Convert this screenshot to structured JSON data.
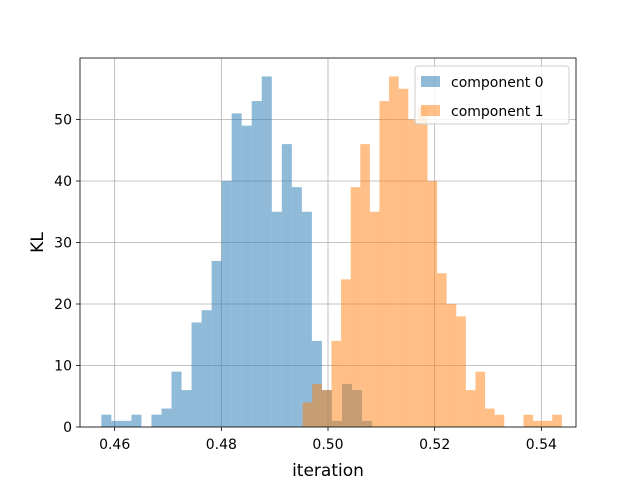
{
  "chart_data": {
    "type": "bar",
    "subtype": "overlapping-histogram",
    "xlabel": "iteration",
    "ylabel": "KL",
    "xlim": [
      0.4535,
      0.5465
    ],
    "ylim": [
      0,
      60
    ],
    "xticks": [
      0.46,
      0.48,
      0.5,
      0.52,
      0.54
    ],
    "xtick_labels": [
      "0.46",
      "0.48",
      "0.50",
      "0.52",
      "0.54"
    ],
    "yticks": [
      0,
      10,
      20,
      30,
      40,
      50
    ],
    "ytick_labels": [
      "0",
      "10",
      "20",
      "30",
      "40",
      "50"
    ],
    "grid": true,
    "legend_position": "top-right",
    "series": [
      {
        "name": "component 0",
        "color": "#1f77b4",
        "alpha": 0.5,
        "bin_start": 0.4575,
        "bin_width": 0.00188,
        "counts": [
          2,
          1,
          1,
          2,
          0,
          2,
          3,
          9,
          6,
          17,
          19,
          27,
          40,
          51,
          49,
          53,
          57,
          35,
          46,
          39,
          35,
          14,
          6,
          1,
          7,
          6,
          1
        ]
      },
      {
        "name": "component 1",
        "color": "#ff7f0e",
        "alpha": 0.5,
        "bin_start": 0.49525,
        "bin_width": 0.0018,
        "counts": [
          4,
          7,
          6,
          14,
          24,
          39,
          46,
          35,
          53,
          57,
          55,
          50,
          52,
          40,
          25,
          20,
          18,
          6,
          9,
          3,
          2,
          0,
          0,
          2,
          1,
          1,
          2
        ]
      }
    ]
  }
}
